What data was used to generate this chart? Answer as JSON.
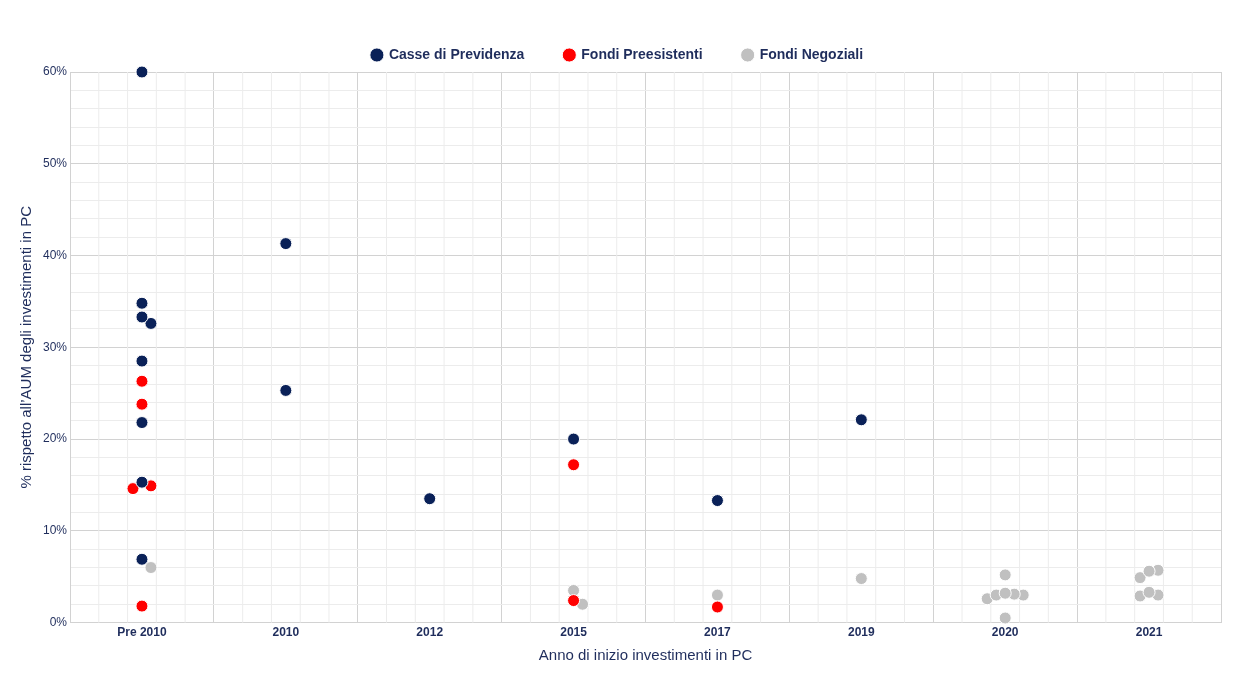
{
  "chart_data": {
    "type": "scatter",
    "xlabel": "Anno di inizio investimenti in PC",
    "ylabel": "% rispetto all’AUM degli investimenti in PC",
    "legend": "top",
    "grid": true,
    "marker": "circle",
    "categories": [
      "Pre 2010",
      "2010",
      "2012",
      "2015",
      "2017",
      "2019",
      "2020",
      "2021"
    ],
    "ylim": [
      0,
      60
    ],
    "yticks": [
      {
        "value": 0,
        "label": "0%"
      },
      {
        "value": 2,
        "label": null
      },
      {
        "value": 4,
        "label": null
      },
      {
        "value": 6,
        "label": null
      },
      {
        "value": 8,
        "label": null
      },
      {
        "value": 10,
        "label": "10%"
      },
      {
        "value": 12,
        "label": null
      },
      {
        "value": 14,
        "label": null
      },
      {
        "value": 16,
        "label": null
      },
      {
        "value": 18,
        "label": null
      },
      {
        "value": 20,
        "label": "20%"
      },
      {
        "value": 22,
        "label": null
      },
      {
        "value": 24,
        "label": null
      },
      {
        "value": 26,
        "label": null
      },
      {
        "value": 28,
        "label": null
      },
      {
        "value": 30,
        "label": "30%"
      },
      {
        "value": 32,
        "label": null
      },
      {
        "value": 34,
        "label": null
      },
      {
        "value": 36,
        "label": null
      },
      {
        "value": 38,
        "label": null
      },
      {
        "value": 40,
        "label": "40%"
      },
      {
        "value": 42,
        "label": null
      },
      {
        "value": 44,
        "label": null
      },
      {
        "value": 46,
        "label": null
      },
      {
        "value": 48,
        "label": null
      },
      {
        "value": 50,
        "label": "50%"
      },
      {
        "value": 52,
        "label": null
      },
      {
        "value": 54,
        "label": null
      },
      {
        "value": 56,
        "label": null
      },
      {
        "value": 58,
        "label": null
      },
      {
        "value": 60,
        "label": "60%"
      }
    ],
    "series": [
      {
        "name": "Casse di Previdenza",
        "color": "#0a2158",
        "values": [
          60,
          41.3,
          13.5,
          20.0,
          13.3,
          22.1,
          null,
          null
        ]
      },
      {
        "color": "#0a2158",
        "values": [
          34.8,
          25.3,
          null,
          null,
          null,
          null,
          null,
          null
        ]
      },
      {
        "color": "#0a2158",
        "values": [
          33.3,
          null,
          null,
          null,
          null,
          null,
          null,
          null
        ]
      },
      {
        "color": "#0a2158",
        "values": [
          32.6,
          null,
          null,
          null,
          null,
          null,
          null,
          null
        ]
      },
      {
        "color": "#0a2158",
        "values": [
          28.5,
          null,
          null,
          null,
          null,
          null,
          null,
          null
        ]
      },
      {
        "color": "#0a2158",
        "values": [
          21.8,
          null,
          null,
          null,
          null,
          null,
          null,
          null
        ]
      },
      {
        "color": "#0a2158",
        "values": [
          15.3,
          null,
          null,
          null,
          null,
          null,
          null,
          null
        ]
      },
      {
        "color": "#0a2158",
        "values": [
          6.9,
          null,
          null,
          null,
          null,
          null,
          null,
          null
        ]
      },
      {
        "name": "Fondi Preesistenti",
        "color": "#ff0000",
        "values": [
          26.3,
          null,
          null,
          17.2,
          1.7,
          null,
          null,
          null
        ]
      },
      {
        "color": "#ff0000",
        "values": [
          23.8,
          null,
          null,
          2.4,
          null,
          null,
          null,
          null
        ]
      },
      {
        "color": "#ff0000",
        "values": [
          14.9,
          null,
          null,
          null,
          null,
          null,
          null,
          null
        ]
      },
      {
        "color": "#ff0000",
        "values": [
          14.6,
          null,
          null,
          null,
          null,
          null,
          null,
          null
        ]
      },
      {
        "color": "#ff0000",
        "values": [
          1.8,
          null,
          null,
          null,
          null,
          null,
          null,
          null
        ]
      },
      {
        "name": "Fondi Negoziali",
        "color": "#c0c0c0",
        "values": [
          6.0,
          null,
          null,
          3.5,
          3.0,
          4.8,
          5.2,
          5.6
        ]
      },
      {
        "color": "#c0c0c0",
        "values": [
          null,
          null,
          null,
          2.0,
          null,
          null,
          3.2,
          5.7
        ]
      },
      {
        "color": "#c0c0c0",
        "values": [
          null,
          null,
          null,
          null,
          null,
          null,
          3.1,
          4.9
        ]
      },
      {
        "color": "#c0c0c0",
        "values": [
          null,
          null,
          null,
          null,
          null,
          null,
          3.0,
          3.3
        ]
      },
      {
        "color": "#c0c0c0",
        "values": [
          null,
          null,
          null,
          null,
          null,
          null,
          3.0,
          3.0
        ]
      },
      {
        "color": "#c0c0c0",
        "values": [
          null,
          null,
          null,
          null,
          null,
          null,
          2.6,
          2.9
        ]
      },
      {
        "color": "#c0c0c0",
        "values": [
          null,
          null,
          null,
          null,
          null,
          null,
          0.5,
          null
        ]
      }
    ]
  }
}
